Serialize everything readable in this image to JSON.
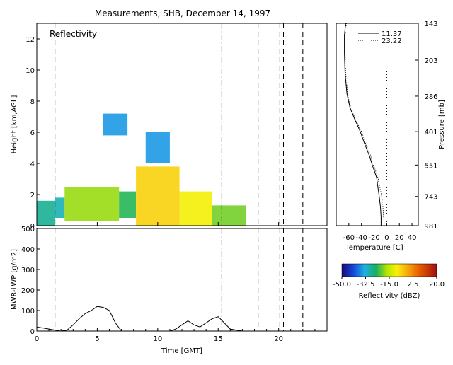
{
  "chart_data": [
    {
      "panel": "reflectivity",
      "type": "heatmap",
      "title": "Measurements, SHB, December 14, 1997",
      "label": "Reflectivity",
      "xlabel": "",
      "ylabel": "Height [km,AGL]",
      "xlim": [
        0,
        24
      ],
      "ylim": [
        0,
        13
      ],
      "xticks": [
        0,
        5,
        10,
        15,
        20
      ],
      "yticks": [
        0,
        2,
        4,
        6,
        8,
        10,
        12
      ],
      "dashed_lines_x": [
        1.5,
        18.3,
        20.1,
        20.4,
        22.0
      ],
      "dashdot_lines_x": [
        15.3
      ],
      "cloud_cells": [
        {
          "t0": 0.0,
          "t1": 1.5,
          "base": 0.0,
          "top": 1.6,
          "dbz": -28
        },
        {
          "t0": 1.5,
          "t1": 2.3,
          "base": 0.5,
          "top": 1.8,
          "dbz": -30
        },
        {
          "t0": 2.3,
          "t1": 6.8,
          "base": 0.3,
          "top": 2.5,
          "dbz": -18
        },
        {
          "t0": 6.8,
          "t1": 8.2,
          "base": 0.5,
          "top": 2.2,
          "dbz": -24
        },
        {
          "t0": 8.2,
          "t1": 11.8,
          "base": 0.0,
          "top": 3.8,
          "dbz": -6
        },
        {
          "t0": 11.8,
          "t1": 14.5,
          "base": 0.0,
          "top": 2.2,
          "dbz": -10
        },
        {
          "t0": 14.5,
          "t1": 17.3,
          "base": 0.0,
          "top": 1.3,
          "dbz": -20
        },
        {
          "t0": 9.0,
          "t1": 11.0,
          "base": 4.0,
          "top": 6.0,
          "dbz": -35
        },
        {
          "t0": 5.5,
          "t1": 7.5,
          "base": 5.8,
          "top": 7.2,
          "dbz": -35
        }
      ]
    },
    {
      "panel": "temperature",
      "type": "line",
      "xlabel": "Temperature [C]",
      "ylabel": "Pressure [mb]",
      "xlim": [
        -80,
        50
      ],
      "xticks": [
        -60,
        -40,
        -20,
        0,
        20,
        40
      ],
      "pressure_ticks": [
        143,
        203,
        286,
        401,
        551,
        743,
        981
      ],
      "series": [
        {
          "name": "11.37",
          "style": "solid",
          "temperature": [
            -65,
            -67,
            -67,
            -66,
            -63,
            -58,
            -50,
            -42,
            -35,
            -28,
            -22,
            -16,
            -14,
            -12,
            -10,
            -9,
            -9
          ],
          "pressure": [
            143,
            160,
            190,
            230,
            280,
            320,
            360,
            400,
            450,
            500,
            560,
            620,
            680,
            740,
            820,
            900,
            981
          ]
        },
        {
          "name": "23.22",
          "style": "dotted",
          "temperature": [
            -64,
            -66,
            -66,
            -65,
            -62,
            -57,
            -49,
            -40,
            -33,
            -26,
            -20,
            -14,
            -11,
            -8,
            -6,
            -5,
            -4
          ],
          "pressure": [
            143,
            160,
            190,
            230,
            280,
            320,
            360,
            400,
            450,
            500,
            560,
            620,
            680,
            740,
            820,
            900,
            981
          ]
        }
      ]
    },
    {
      "panel": "lwp",
      "type": "line",
      "xlabel": "Time [GMT]",
      "ylabel": "MWR-LWP [g/m2]",
      "xlim": [
        0,
        24
      ],
      "ylim": [
        0,
        500
      ],
      "xticks": [
        0,
        5,
        10,
        15,
        20
      ],
      "yticks": [
        0,
        100,
        200,
        300,
        400,
        500
      ],
      "series": [
        {
          "name": "LWP",
          "x": [
            0.0,
            0.5,
            1.0,
            1.5,
            2.0,
            2.5,
            3.0,
            3.5,
            4.0,
            4.5,
            5.0,
            5.5,
            6.0,
            6.5,
            7.0,
            8.0,
            9.0,
            10.0,
            11.0,
            11.5,
            12.0,
            12.5,
            13.0,
            13.5,
            14.0,
            14.5,
            15.0,
            15.5,
            16.0,
            16.5,
            17.0,
            17.5,
            18.0,
            19.0,
            20.0,
            22.0
          ],
          "y": [
            20,
            15,
            10,
            5,
            0,
            5,
            30,
            60,
            85,
            100,
            120,
            115,
            100,
            40,
            0,
            0,
            0,
            0,
            0,
            10,
            30,
            50,
            30,
            20,
            40,
            60,
            70,
            40,
            10,
            5,
            0,
            0,
            0,
            0,
            0,
            0
          ]
        }
      ]
    },
    {
      "panel": "colorbar",
      "type": "heatmap",
      "label": "Reflectivity (dBZ)",
      "range": [
        -50,
        20
      ],
      "tick_labels": [
        "-50.0",
        "-32.5",
        "-15.0",
        "2.5",
        "20.0"
      ]
    }
  ]
}
